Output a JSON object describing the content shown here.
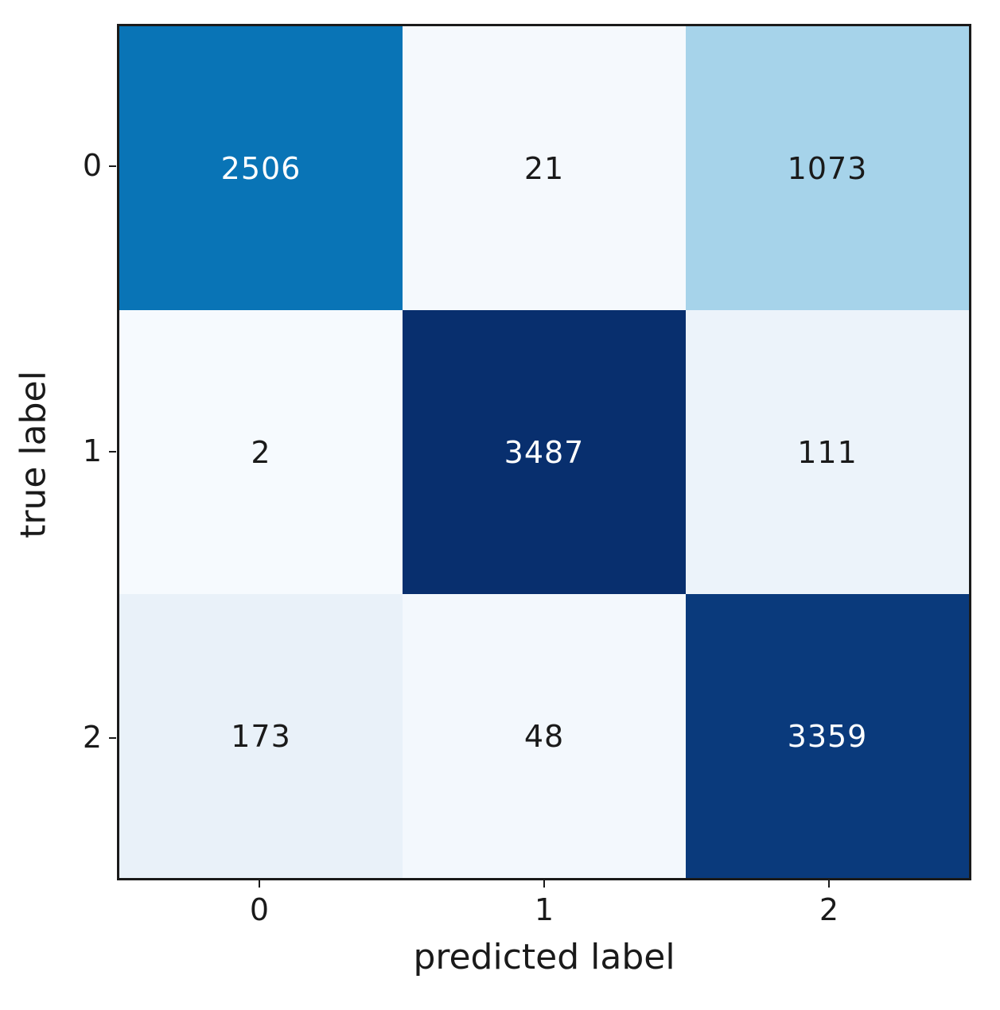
{
  "figure": {
    "background_color": "#ffffff",
    "spine_color": "#1a1a1a",
    "tick_color": "#1a1a1a",
    "text_color": "#1a1a1a"
  },
  "chart_data": {
    "type": "heatmap",
    "subtype": "confusion-matrix",
    "title": "",
    "xlabel": "predicted label",
    "ylabel": "true label",
    "x_tick_labels": [
      "0",
      "1",
      "2"
    ],
    "y_tick_labels": [
      "0",
      "1",
      "2"
    ],
    "matrix": [
      [
        2506,
        21,
        1073
      ],
      [
        2,
        3487,
        111
      ],
      [
        173,
        48,
        3359
      ]
    ],
    "value_range": [
      2,
      3487
    ],
    "colormap": "Blues",
    "grid": false,
    "legend_position": "none",
    "cell_colors": [
      [
        "#0974b6",
        "#f5f9fd",
        "#a6d3ea"
      ],
      [
        "#f6fafe",
        "#082f6e",
        "#ecf3fa"
      ],
      [
        "#e9f1f9",
        "#f3f8fd",
        "#0a3a7c"
      ]
    ],
    "cell_text_colors": [
      [
        "#ffffff",
        "#1a1a1a",
        "#1a1a1a"
      ],
      [
        "#1a1a1a",
        "#ffffff",
        "#1a1a1a"
      ],
      [
        "#1a1a1a",
        "#1a1a1a",
        "#ffffff"
      ]
    ]
  }
}
